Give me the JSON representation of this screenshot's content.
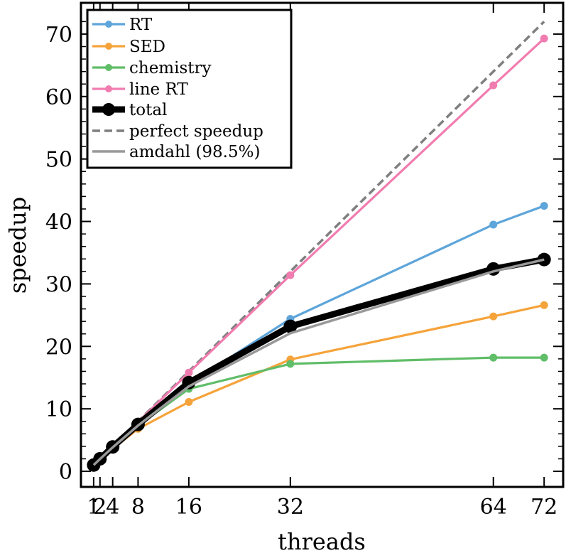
{
  "chart_data": {
    "type": "line",
    "xlabel": "threads",
    "ylabel": "speedup",
    "xlim": [
      -1,
      75
    ],
    "ylim": [
      -2.5,
      75
    ],
    "xticks": [
      1,
      2,
      4,
      8,
      16,
      32,
      64,
      72
    ],
    "xtick_labels": [
      "1",
      "2",
      "4",
      "8",
      "16",
      "32",
      "64",
      "72"
    ],
    "yticks": [
      0,
      10,
      20,
      30,
      40,
      50,
      60,
      70
    ],
    "ytick_labels": [
      "0",
      "10",
      "20",
      "30",
      "40",
      "50",
      "60",
      "70"
    ],
    "grid": false,
    "legend_position": "top-left",
    "series": [
      {
        "name": "RT",
        "color": "#5da5da",
        "style": "line-marker",
        "x": [
          1,
          2,
          4,
          8,
          16,
          32,
          64,
          72
        ],
        "y": [
          1.0,
          2.0,
          3.9,
          7.6,
          14.0,
          24.4,
          39.5,
          42.5
        ]
      },
      {
        "name": "SED",
        "color": "#f5a33a",
        "style": "line-marker",
        "x": [
          1,
          2,
          4,
          8,
          16,
          32,
          64,
          72
        ],
        "y": [
          1.0,
          1.9,
          3.6,
          6.8,
          11.1,
          17.9,
          24.8,
          26.6
        ]
      },
      {
        "name": "chemistry",
        "color": "#60bd68",
        "style": "line-marker",
        "x": [
          1,
          2,
          4,
          8,
          16,
          32,
          64,
          72
        ],
        "y": [
          1.0,
          2.0,
          3.9,
          7.3,
          13.2,
          17.2,
          18.2,
          18.2
        ]
      },
      {
        "name": "line RT",
        "color": "#f17cb0",
        "style": "line-marker",
        "x": [
          1,
          2,
          4,
          8,
          16,
          32,
          64,
          72
        ],
        "y": [
          1.0,
          2.0,
          4.0,
          7.9,
          15.8,
          31.4,
          61.8,
          69.3
        ]
      },
      {
        "name": "total",
        "color": "#000000",
        "style": "thick-line-marker",
        "x": [
          1,
          2,
          4,
          8,
          16,
          32,
          64,
          72
        ],
        "y": [
          1.0,
          2.0,
          3.9,
          7.5,
          14.2,
          23.2,
          32.4,
          33.9
        ]
      },
      {
        "name": "perfect speedup",
        "color": "#7f7f7f",
        "style": "dashed",
        "x": [
          1,
          72
        ],
        "y": [
          1,
          72
        ]
      },
      {
        "name": "amdahl (98.5%)",
        "color": "#999999",
        "style": "line",
        "x": [
          1,
          2,
          4,
          8,
          16,
          32,
          64,
          72
        ],
        "y": [
          1.0,
          1.97,
          3.83,
          7.33,
          13.6,
          22.1,
          32.0,
          33.9
        ]
      }
    ]
  }
}
